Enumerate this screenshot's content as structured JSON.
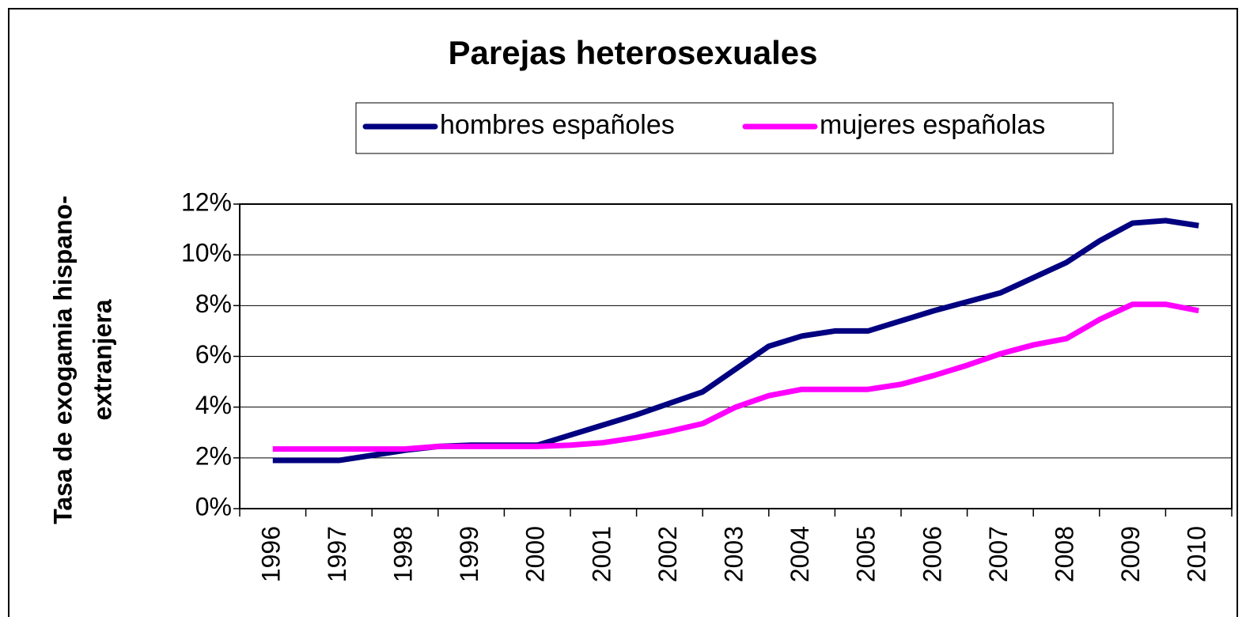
{
  "chart_data": {
    "type": "line",
    "title": "Parejas heterosexuales",
    "y_label": [
      "Tasa de exogamia hispano-",
      "extranjera"
    ],
    "categories": [
      "1996",
      null,
      "1997",
      null,
      "1998",
      null,
      "1999",
      null,
      "2000",
      null,
      "2001",
      null,
      "2002",
      null,
      "2003",
      null,
      "2004",
      null,
      "2005",
      null,
      "2006",
      null,
      "2007",
      null,
      "2008",
      null,
      "2009",
      null,
      "2010"
    ],
    "series": [
      {
        "name": "hombres españoles",
        "color": "#000080",
        "values": [
          1.9,
          1.9,
          1.9,
          2.1,
          2.3,
          2.45,
          2.5,
          2.5,
          2.5,
          2.9,
          3.3,
          3.7,
          4.15,
          4.6,
          5.5,
          6.4,
          6.8,
          7.0,
          7.0,
          7.4,
          7.8,
          8.15,
          8.5,
          9.1,
          9.7,
          10.55,
          11.25,
          11.35,
          11.15
        ]
      },
      {
        "name": "mujeres españolas",
        "color": "#ff00ff",
        "values": [
          2.35,
          2.35,
          2.35,
          2.35,
          2.35,
          2.45,
          2.45,
          2.45,
          2.45,
          2.5,
          2.6,
          2.8,
          3.05,
          3.35,
          4.0,
          4.45,
          4.7,
          4.7,
          4.7,
          4.9,
          5.25,
          5.65,
          6.1,
          6.45,
          6.7,
          7.45,
          8.05,
          8.05,
          7.8
        ]
      }
    ],
    "ylim": [
      0,
      12
    ],
    "yticks": [
      {
        "value": 0,
        "label": "0%"
      },
      {
        "value": 2,
        "label": "2%"
      },
      {
        "value": 4,
        "label": "4%"
      },
      {
        "value": 6,
        "label": "6%"
      },
      {
        "value": 8,
        "label": "8%"
      },
      {
        "value": 10,
        "label": "10%"
      },
      {
        "value": 12,
        "label": "12%"
      }
    ],
    "grid": true,
    "legend": "top"
  }
}
